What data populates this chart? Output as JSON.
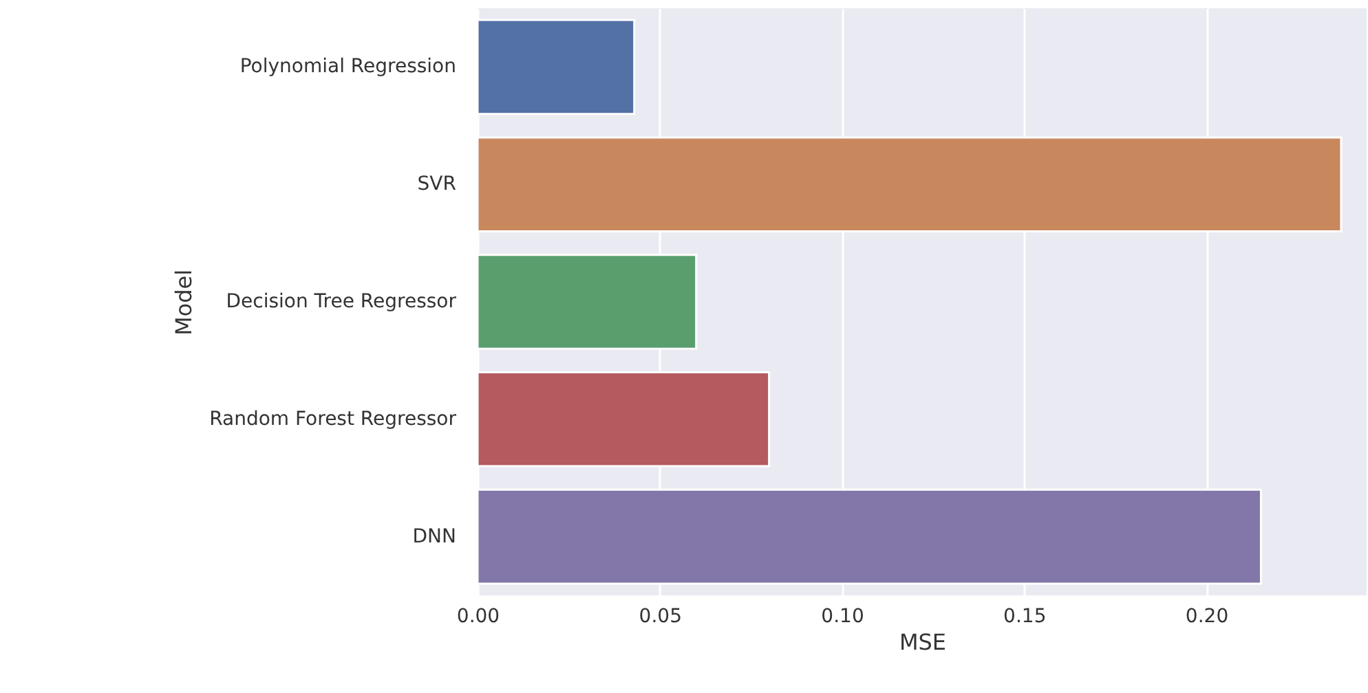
{
  "chart_data": {
    "type": "bar",
    "orientation": "horizontal",
    "xlabel": "MSE",
    "ylabel": "Model",
    "categories": [
      "Polynomial Regression",
      "SVR",
      "Decision Tree Regressor",
      "Random Forest Regressor",
      "DNN"
    ],
    "values": [
      0.043,
      0.237,
      0.06,
      0.08,
      0.215
    ],
    "colors": [
      "#5471a5",
      "#c9875e",
      "#5a9e6e",
      "#b55a5f",
      "#8277a8"
    ],
    "xlim": [
      0,
      0.244
    ],
    "xticks": [
      {
        "value": 0,
        "label": "0.00"
      },
      {
        "value": 0.05,
        "label": "0.05"
      },
      {
        "value": 0.1,
        "label": "0.10"
      },
      {
        "value": 0.15,
        "label": "0.15"
      },
      {
        "value": 0.2,
        "label": "0.20"
      }
    ],
    "grid": "x"
  }
}
